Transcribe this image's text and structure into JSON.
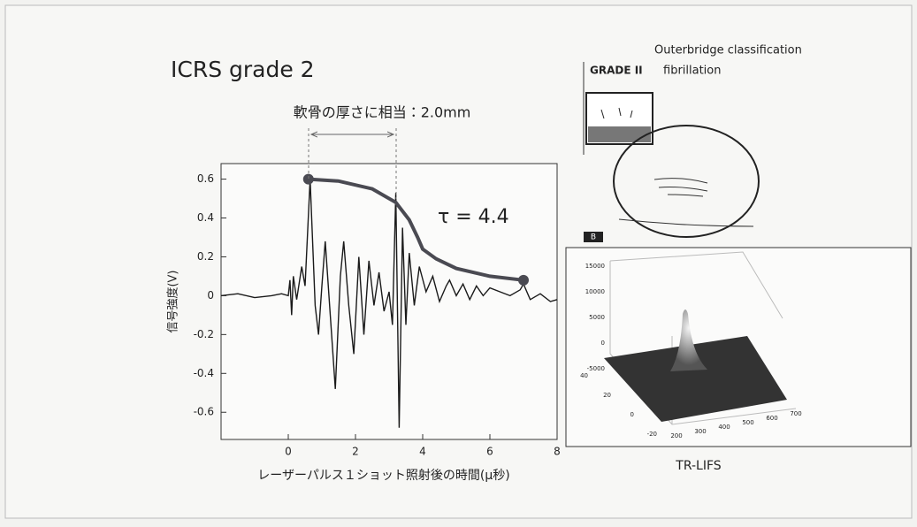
{
  "title": "ICRS  grade 2",
  "diagram": {
    "heading": "Outerbridge classification",
    "grade": "GRADE II",
    "grade_text": "fibrillation",
    "panel_label": "B"
  },
  "chart_data": [
    {
      "type": "line",
      "annotation": "軟骨の厚さに相当：2.0mm",
      "fit_label": "τ = 4.4",
      "ylabel": "信号強度(V)",
      "xlabel": "レーザーパルス１ショット照射後の時間(μ秒)",
      "color": "#1a1a1a",
      "x": [
        -2,
        -1.5,
        -1,
        -0.5,
        -0.2,
        0,
        0.05,
        0.1,
        0.15,
        0.25,
        0.4,
        0.5,
        0.65,
        0.8,
        0.9,
        1.0,
        1.1,
        1.25,
        1.4,
        1.55,
        1.65,
        1.8,
        1.95,
        2.1,
        2.25,
        2.4,
        2.55,
        2.7,
        2.85,
        3.0,
        3.1,
        3.2,
        3.3,
        3.4,
        3.5,
        3.6,
        3.75,
        3.9,
        4.1,
        4.3,
        4.5,
        4.7,
        4.8,
        5.0,
        5.2,
        5.4,
        5.6,
        5.8,
        6.0,
        6.3,
        6.6,
        6.9,
        7.0,
        7.2,
        7.5,
        7.8,
        8
      ],
      "values": [
        0,
        0.01,
        -0.01,
        0,
        0.01,
        0,
        0.08,
        -0.1,
        0.1,
        -0.02,
        0.15,
        0.05,
        0.6,
        -0.05,
        -0.2,
        0.05,
        0.28,
        -0.1,
        -0.48,
        0.1,
        0.28,
        -0.05,
        -0.3,
        0.2,
        -0.2,
        0.18,
        -0.05,
        0.12,
        -0.08,
        0.02,
        -0.15,
        0.53,
        -0.68,
        0.35,
        -0.15,
        0.22,
        -0.05,
        0.15,
        0.02,
        0.1,
        -0.03,
        0.05,
        0.08,
        0,
        0.06,
        -0.02,
        0.05,
        0,
        0.04,
        0.02,
        0,
        0.03,
        0.06,
        -0.02,
        0.01,
        -0.03,
        -0.02
      ],
      "fit": {
        "color": "#4a4a52",
        "x": [
          0.6,
          1.5,
          2.5,
          3.2,
          3.6,
          3.85,
          4.0,
          4.4,
          5.0,
          6.0,
          7.0
        ],
        "values": [
          0.6,
          0.59,
          0.55,
          0.48,
          0.39,
          0.3,
          0.24,
          0.19,
          0.14,
          0.1,
          0.08
        ]
      },
      "xlim": [
        -2,
        8
      ],
      "xticks": [
        0,
        2,
        4,
        6,
        8
      ],
      "ylim": [
        -0.74,
        0.68
      ],
      "yticks": [
        -0.6,
        -0.4,
        -0.2,
        0,
        0.2,
        0.4,
        0.6
      ]
    },
    {
      "type": "surface",
      "title": "TR-LIFS",
      "zticks": [
        -5000,
        0,
        5000,
        10000,
        15000
      ],
      "xticks": [
        200,
        300,
        400,
        500,
        600,
        700
      ],
      "yticks": [
        -20,
        0,
        20,
        40
      ]
    }
  ]
}
